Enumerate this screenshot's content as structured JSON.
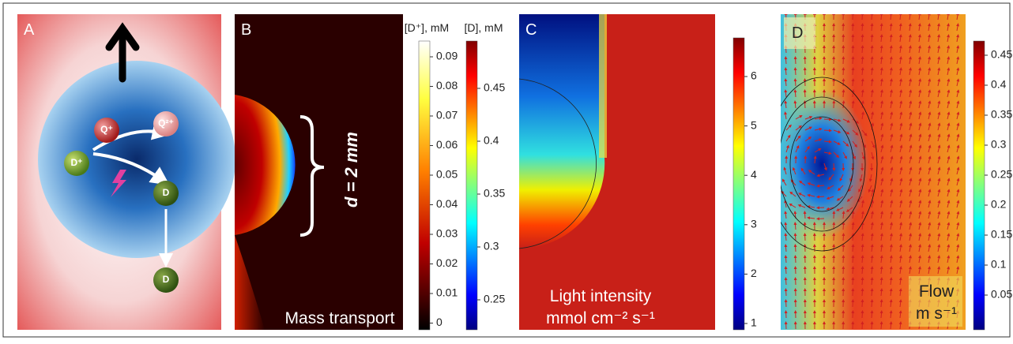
{
  "panels": [
    {
      "label": "A",
      "ions": [
        "Q⁺",
        "Q²⁺",
        "D⁺",
        "D",
        "D"
      ]
    },
    {
      "label": "B",
      "annotation": "d = 2 mm",
      "caption": "Mass transport"
    },
    {
      "label": "C",
      "caption": [
        "Light intensity",
        "mmol cm⁻² s⁻¹"
      ]
    },
    {
      "label": "D",
      "caption": [
        "Flow",
        "m s⁻¹"
      ]
    }
  ],
  "colorbars": [
    {
      "title": "[D⁺], mM",
      "ticks": [
        0.09,
        0.08,
        0.07,
        0.06,
        0.05,
        0.04,
        0.03,
        0.02,
        0.01,
        0
      ]
    },
    {
      "title": "[D], mM",
      "ticks": [
        0.45,
        0.4,
        0.35,
        0.3,
        0.25
      ]
    },
    {
      "ticks": [
        6,
        5,
        4,
        3,
        2,
        1
      ]
    },
    {
      "ticks": [
        0.45,
        0.4,
        0.35,
        0.3,
        0.25,
        0.2,
        0.15,
        0.1,
        0.05
      ]
    }
  ]
}
